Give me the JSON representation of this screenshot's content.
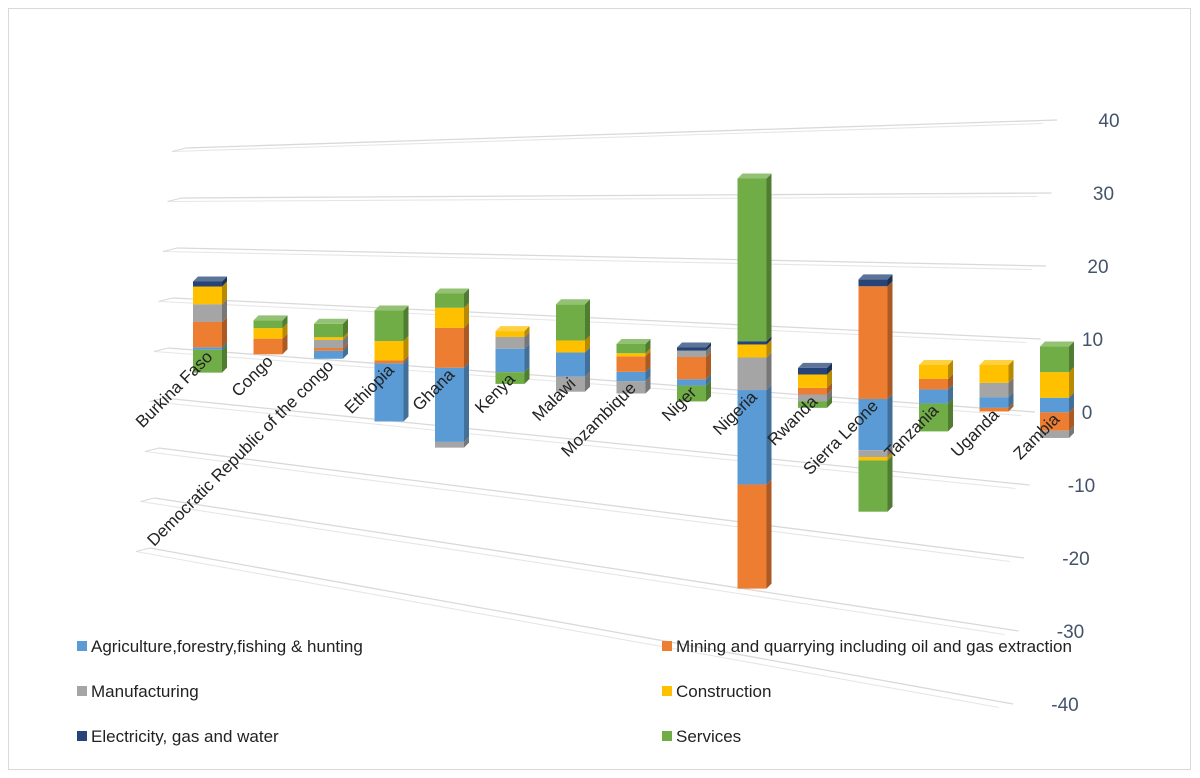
{
  "chart_data": {
    "type": "bar",
    "subtype": "stacked-3d",
    "title": "",
    "xlabel": "",
    "ylabel": "",
    "ylim": [
      -40,
      40
    ],
    "yticks": [
      40,
      30,
      20,
      10,
      0,
      -10,
      -20,
      -30,
      -40
    ],
    "grid": true,
    "legend_position": "bottom",
    "categories": [
      "Burkina Faso",
      "Congo",
      "Democratic Republic of the congo",
      "Ethiopia",
      "Ghana",
      "Kenya",
      "Malawi",
      "Mozambique",
      "Niger",
      "Nigeria",
      "Rwanda",
      "Sierra Leone",
      "Tanzania",
      "Uganda",
      "Zambia"
    ],
    "series": [
      {
        "name": "Agriculture,forestry,fishing & hunting",
        "color": "#5b9bd5",
        "values": [
          0.5,
          0,
          1.5,
          -10.5,
          -13,
          4,
          4,
          1.5,
          1,
          -14.5,
          0,
          -7.5,
          2,
          1.5,
          2
        ]
      },
      {
        "name": "Mining and quarrying including oil and gas extraction",
        "color": "#ed7d31",
        "values": [
          5,
          3,
          0.5,
          0.5,
          7,
          0,
          0,
          2.5,
          3.5,
          -16,
          1,
          16.5,
          1.5,
          -0.5,
          -2.5
        ]
      },
      {
        "name": "Manufacturing",
        "color": "#a5a5a5",
        "values": [
          3.5,
          0,
          1.5,
          0,
          -1,
          2,
          -2.5,
          -2,
          1,
          5,
          -1,
          -1,
          0,
          2,
          -1
        ]
      },
      {
        "name": "Construction",
        "color": "#ffc000",
        "values": [
          3.5,
          2,
          0.5,
          3.5,
          3.5,
          1,
          2,
          0.5,
          0,
          2,
          2,
          -0.5,
          2,
          2.5,
          3.5
        ]
      },
      {
        "name": "Electricity, gas and water",
        "color": "#264478",
        "values": [
          1,
          0,
          0,
          0,
          0,
          0,
          0,
          0,
          0.5,
          0.5,
          1,
          1,
          0,
          0,
          0
        ]
      },
      {
        "name": "Services",
        "color": "#70ad47",
        "values": [
          -4.5,
          1.5,
          2.5,
          5.5,
          2.5,
          -2,
          6,
          1.5,
          -2.5,
          25,
          -1,
          -7.5,
          -4,
          0,
          3.5
        ]
      }
    ]
  }
}
